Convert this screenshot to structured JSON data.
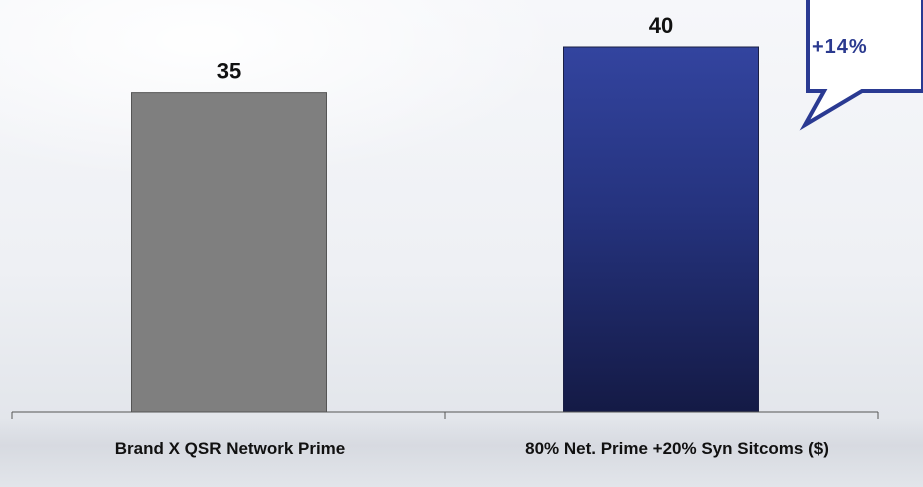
{
  "chart_data": {
    "type": "bar",
    "categories": [
      "Brand X QSR Network Prime",
      "80% Net. Prime +20% Syn Sitcoms ($)"
    ],
    "values": [
      35,
      40
    ],
    "data_labels": [
      "35",
      "40"
    ],
    "ylim": [
      0,
      45
    ],
    "grid": false,
    "bar_colors": [
      "#7f7f7f",
      "#2a3a92"
    ],
    "annotation": "+14%"
  }
}
